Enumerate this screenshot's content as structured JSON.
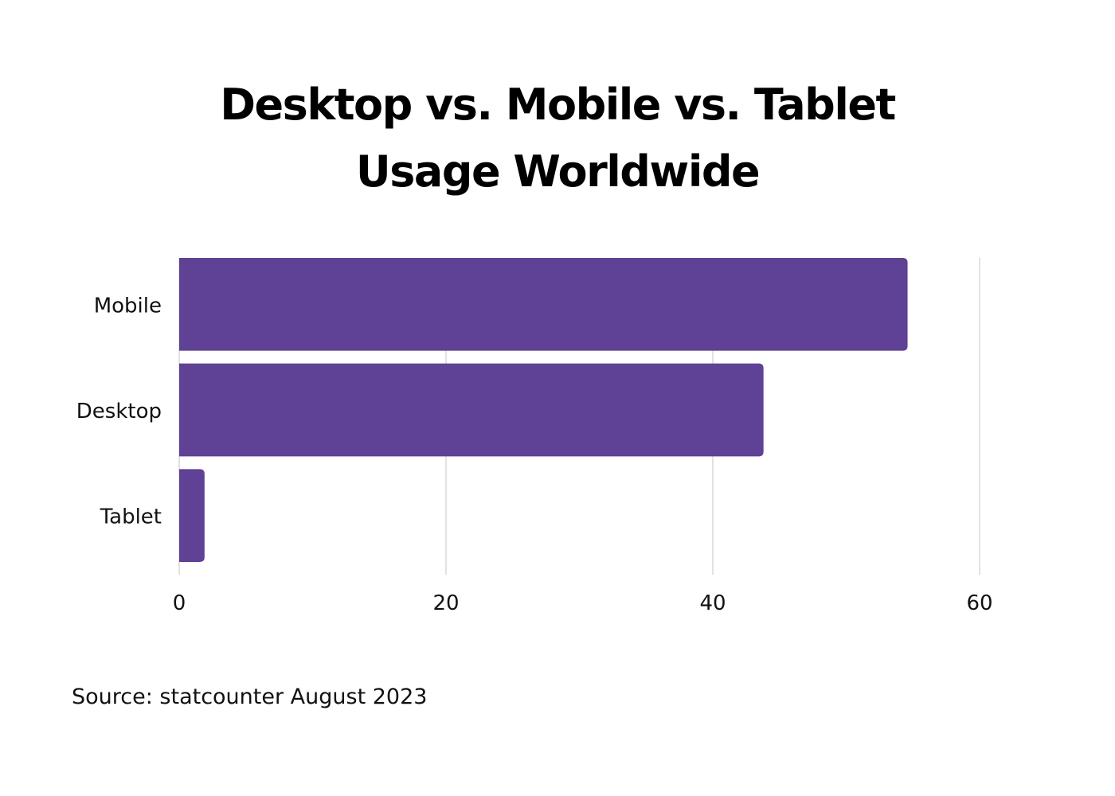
{
  "chart_data": {
    "type": "bar",
    "orientation": "horizontal",
    "title": "Desktop vs. Mobile vs. Tablet Usage Worldwide",
    "title_lines": [
      "Desktop vs. Mobile vs. Tablet",
      "Usage Worldwide"
    ],
    "categories": [
      "Mobile",
      "Desktop",
      "Tablet"
    ],
    "values": [
      54.6,
      43.8,
      1.9
    ],
    "xlim": [
      0,
      60
    ],
    "xticks": [
      "0",
      "20",
      "40",
      "60"
    ],
    "xlabel": "",
    "ylabel": "",
    "grid": "vertical",
    "legend": "none",
    "bar_color": "#5f4196",
    "grid_color": "#d9d9d9"
  },
  "source": "Source: statcounter August 2023"
}
